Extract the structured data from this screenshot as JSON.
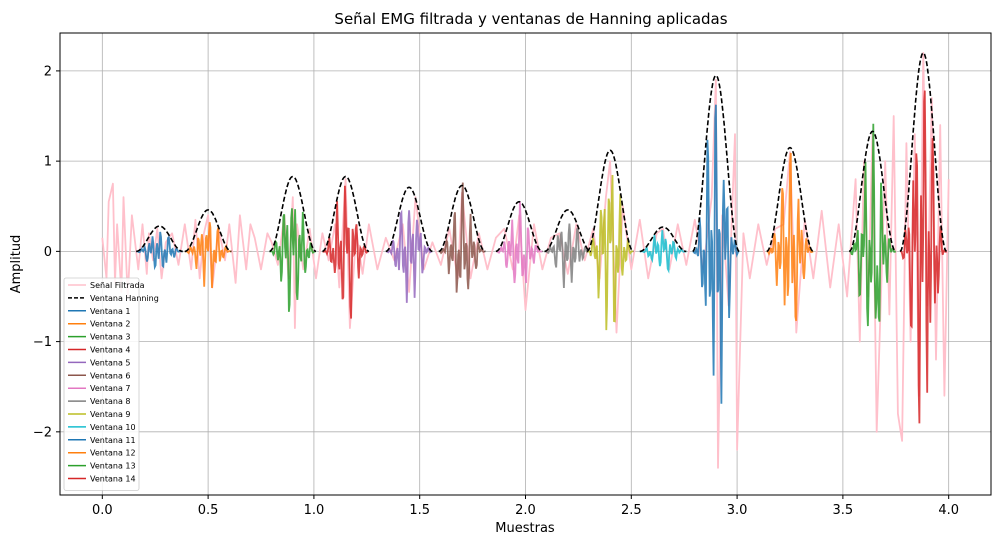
{
  "chart_data": {
    "type": "line",
    "title": "Señal EMG filtrada y ventanas de Hanning aplicadas",
    "xlabel": "Muestras",
    "ylabel": "Amplitud",
    "xlim": [
      -0.2,
      4.2
    ],
    "ylim": [
      -2.7,
      2.42
    ],
    "xticks": [
      0.0,
      0.5,
      1.0,
      1.5,
      2.0,
      2.5,
      3.0,
      3.5,
      4.0
    ],
    "xtick_labels": [
      "0.0",
      "0.5",
      "1.0",
      "1.5",
      "2.0",
      "2.5",
      "3.0",
      "3.5",
      "4.0"
    ],
    "yticks": [
      -2,
      -1,
      0,
      1,
      2
    ],
    "ytick_labels": [
      "−2",
      "−1",
      "0",
      "1",
      "2"
    ],
    "grid": true,
    "legend_position": "lower-left",
    "signal": {
      "name": "Señal Filtrada",
      "color": "#ffc0cb",
      "x": [
        0.0,
        0.02,
        0.03,
        0.05,
        0.06,
        0.07,
        0.09,
        0.1,
        0.12,
        0.14,
        0.17,
        0.19,
        0.21,
        0.22,
        0.24,
        0.26,
        0.28,
        0.3,
        0.33,
        0.36,
        0.39,
        0.42,
        0.44,
        0.46,
        0.48,
        0.5,
        0.52,
        0.55,
        0.58,
        0.6,
        0.63,
        0.65,
        0.68,
        0.7,
        0.72,
        0.75,
        0.78,
        0.8,
        0.83,
        0.86,
        0.88,
        0.9,
        0.91,
        0.92,
        0.95,
        0.98,
        1.01,
        1.04,
        1.07,
        1.1,
        1.12,
        1.15,
        1.17,
        1.2,
        1.23,
        1.26,
        1.3,
        1.34,
        1.38,
        1.42,
        1.45,
        1.48,
        1.52,
        1.56,
        1.6,
        1.64,
        1.68,
        1.7,
        1.74,
        1.78,
        1.82,
        1.86,
        1.9,
        1.94,
        1.97,
        2.0,
        2.04,
        2.08,
        2.12,
        2.16,
        2.2,
        2.24,
        2.28,
        2.32,
        2.35,
        2.38,
        2.4,
        2.43,
        2.46,
        2.5,
        2.54,
        2.58,
        2.62,
        2.65,
        2.68,
        2.72,
        2.76,
        2.8,
        2.84,
        2.88,
        2.9,
        2.91,
        2.93,
        2.96,
        2.99,
        3.0,
        3.03,
        3.06,
        3.1,
        3.14,
        3.18,
        3.22,
        3.25,
        3.28,
        3.32,
        3.36,
        3.4,
        3.44,
        3.48,
        3.52,
        3.56,
        3.58,
        3.6,
        3.62,
        3.64,
        3.66,
        3.7,
        3.72,
        3.74,
        3.76,
        3.78,
        3.8,
        3.82,
        3.84,
        3.86,
        3.88,
        3.9,
        3.92,
        3.94,
        3.96,
        3.98,
        4.0
      ],
      "y": [
        0.15,
        -0.3,
        0.55,
        0.75,
        -0.35,
        0.3,
        -0.45,
        0.6,
        -0.5,
        0.4,
        -0.2,
        0.3,
        -0.25,
        0.2,
        -0.1,
        0.25,
        -0.3,
        0.1,
        0.2,
        -0.15,
        0.3,
        -0.2,
        0.35,
        -0.3,
        0.2,
        0.4,
        -0.4,
        0.25,
        -0.1,
        0.3,
        -0.35,
        0.4,
        -0.2,
        0.3,
        0.15,
        -0.2,
        0.2,
        0.1,
        -0.15,
        0.4,
        -0.3,
        0.6,
        -0.85,
        0.3,
        -0.2,
        0.25,
        -0.3,
        0.2,
        -0.1,
        0.3,
        -0.4,
        0.8,
        -0.85,
        0.2,
        -0.25,
        0.3,
        -0.2,
        0.15,
        -0.1,
        0.3,
        -0.45,
        0.6,
        -0.2,
        0.1,
        -0.15,
        0.25,
        -0.3,
        0.65,
        -0.3,
        0.2,
        -0.2,
        0.15,
        0.25,
        -0.2,
        0.4,
        -0.65,
        0.3,
        -0.2,
        0.15,
        0.2,
        -0.25,
        0.3,
        -0.1,
        0.25,
        -0.3,
        0.6,
        1.0,
        -0.9,
        0.5,
        -0.2,
        0.35,
        -0.3,
        0.2,
        0.25,
        -0.2,
        0.3,
        -0.15,
        0.35,
        -0.2,
        0.6,
        1.9,
        -2.4,
        0.4,
        -0.6,
        1.3,
        -2.2,
        0.2,
        -0.3,
        0.3,
        -0.15,
        0.25,
        0.3,
        1.1,
        -0.9,
        0.35,
        -0.3,
        0.45,
        -0.4,
        0.3,
        -0.5,
        0.8,
        -1.0,
        1.0,
        -0.5,
        1.3,
        -2.0,
        1.0,
        -0.7,
        1.5,
        -1.8,
        -2.1,
        1.2,
        -1.0,
        1.3,
        -1.6,
        2.2,
        -0.6,
        1.7,
        -1.2,
        1.4,
        -1.6,
        0.8
      ]
    },
    "hanning": {
      "name": "Ventana Hanning",
      "color": "#000000",
      "centers": [
        0.27,
        0.5,
        0.9,
        1.15,
        1.45,
        1.7,
        1.97,
        2.2,
        2.4,
        2.65,
        2.9,
        3.25,
        3.64,
        3.88
      ],
      "peaks": [
        0.28,
        0.46,
        0.83,
        0.83,
        0.71,
        0.73,
        0.55,
        0.46,
        1.12,
        0.27,
        1.95,
        1.15,
        1.33,
        2.2
      ],
      "half_width": 0.11
    },
    "series": [
      {
        "name": "Ventana 1",
        "color": "#1f77b4"
      },
      {
        "name": "Ventana 2",
        "color": "#ff7f0e"
      },
      {
        "name": "Ventana 3",
        "color": "#2ca02c"
      },
      {
        "name": "Ventana 4",
        "color": "#d62728"
      },
      {
        "name": "Ventana 5",
        "color": "#9467bd"
      },
      {
        "name": "Ventana 6",
        "color": "#8c564b"
      },
      {
        "name": "Ventana 7",
        "color": "#e377c2"
      },
      {
        "name": "Ventana 8",
        "color": "#7f7f7f"
      },
      {
        "name": "Ventana 9",
        "color": "#bcbd22"
      },
      {
        "name": "Ventana 10",
        "color": "#17becf"
      },
      {
        "name": "Ventana 11",
        "color": "#1f77b4"
      },
      {
        "name": "Ventana 12",
        "color": "#ff7f0e"
      },
      {
        "name": "Ventana 13",
        "color": "#2ca02c"
      },
      {
        "name": "Ventana 14",
        "color": "#d62728"
      }
    ]
  }
}
